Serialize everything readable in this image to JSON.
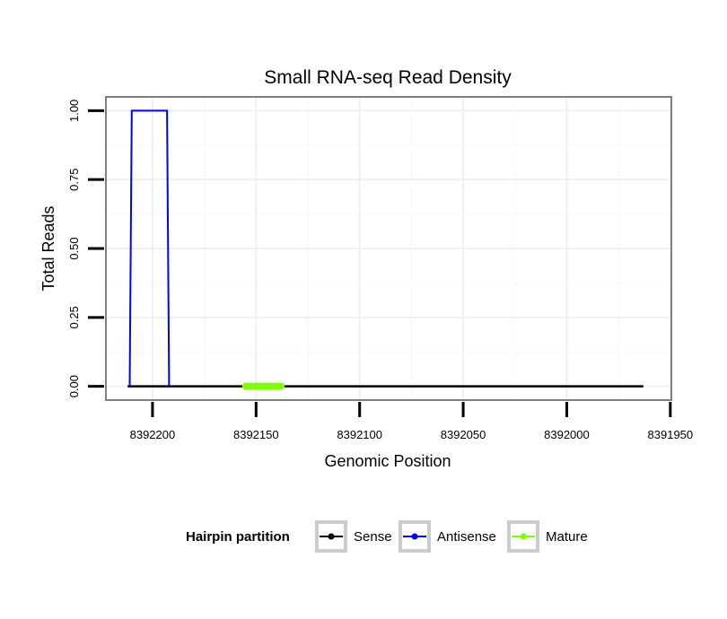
{
  "chart_data": {
    "type": "line",
    "title": "Small RNA-seq Read Density",
    "xlabel": "Genomic Position",
    "ylabel": "Total Reads",
    "x_reversed": true,
    "xlim": [
      8392222.5,
      8391949.5
    ],
    "ylim": [
      -0.05,
      1.05
    ],
    "x_ticks": [
      8392200,
      8392150,
      8392100,
      8392050,
      8392000,
      8391950
    ],
    "x_tick_labels": [
      "8392200",
      "8392150",
      "8392100",
      "8392050",
      "8392000",
      "8391950"
    ],
    "y_ticks": [
      0,
      0.25,
      0.5,
      0.75,
      1
    ],
    "y_tick_labels": [
      "0.00",
      "0.25",
      "0.50",
      "0.75",
      "1.00"
    ],
    "grid": true,
    "legend": {
      "title": "Hairpin partition",
      "position": "bottom",
      "entries": [
        "Sense",
        "Antisense",
        "Mature"
      ]
    },
    "series": [
      {
        "name": "Sense",
        "color": "#000000",
        "x": [
          8392212,
          8391963
        ],
        "y": [
          0,
          0
        ]
      },
      {
        "name": "Antisense",
        "color": "#0000FF",
        "x": [
          8392211,
          8392210,
          8392193,
          8392192
        ],
        "y": [
          0,
          1,
          1,
          0
        ]
      },
      {
        "name": "Mature",
        "color": "#7FFF00",
        "x": [
          8392155,
          8392138
        ],
        "y": [
          0,
          0
        ]
      }
    ]
  }
}
